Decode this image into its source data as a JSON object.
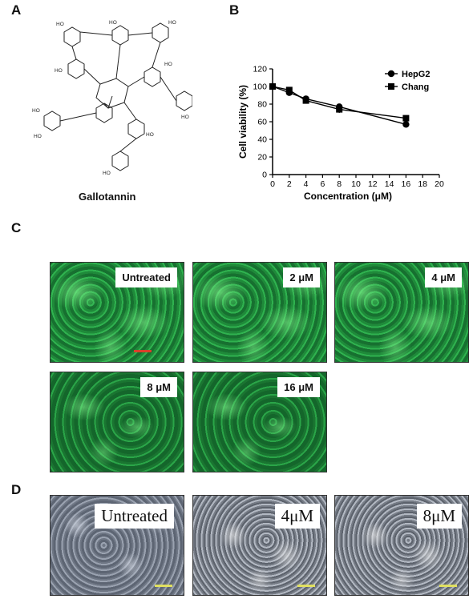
{
  "panels": {
    "a": {
      "letter": "A",
      "molecule_name": "Gallotannin",
      "atom_label": "HO"
    },
    "b": {
      "letter": "B"
    },
    "c": {
      "letter": "C",
      "images": [
        {
          "label": "Untreated"
        },
        {
          "label": "2 μM"
        },
        {
          "label": "4 μM"
        },
        {
          "label": "8 μM"
        },
        {
          "label": "16 μM"
        }
      ]
    },
    "d": {
      "letter": "D",
      "images": [
        {
          "label": "Untreated"
        },
        {
          "label": "4μM"
        },
        {
          "label": "8μM"
        }
      ]
    }
  },
  "chart_data": {
    "type": "line",
    "xlabel": "Concentration (μM)",
    "ylabel": "Cell viability (%)",
    "xlim": [
      0,
      20
    ],
    "ylim": [
      0,
      120
    ],
    "xticks": [
      0,
      2,
      4,
      6,
      8,
      10,
      12,
      14,
      16,
      18,
      20
    ],
    "yticks": [
      0,
      20,
      40,
      60,
      80,
      100,
      120
    ],
    "grid": false,
    "legend_position": "top-right",
    "x": [
      0,
      2,
      4,
      8,
      16
    ],
    "series": [
      {
        "name": "HepG2",
        "marker": "circle",
        "values": [
          100,
          93,
          86,
          77,
          57
        ],
        "errors": [
          1.5,
          2,
          2,
          3,
          2
        ]
      },
      {
        "name": "Chang",
        "marker": "square",
        "values": [
          100,
          96,
          84,
          74,
          64
        ],
        "errors": [
          1.5,
          2,
          2,
          4,
          2
        ]
      }
    ]
  }
}
